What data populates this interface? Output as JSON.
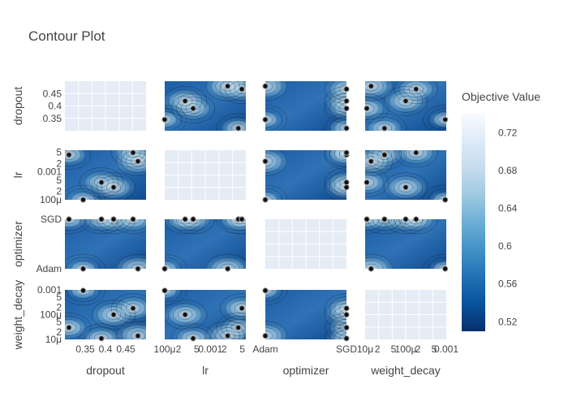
{
  "chart_data": {
    "type": "contour",
    "title": "Contour Plot",
    "params": [
      "dropout",
      "lr",
      "optimizer",
      "weight_decay"
    ],
    "colorbar": {
      "title": "Objective Value",
      "range": [
        0.51,
        0.74
      ],
      "ticks": [
        "0.52",
        "0.56",
        "0.6",
        "0.64",
        "0.68",
        "0.72"
      ],
      "colorscale": [
        "#08306b",
        "#08519c",
        "#2171b5",
        "#4292c6",
        "#6baed6",
        "#9ecae1",
        "#c6dbef",
        "#deebf7",
        "#f7fbff"
      ]
    },
    "axes": {
      "dropout": {
        "label": "dropout",
        "scale": "linear",
        "range": [
          0.3,
          0.5
        ],
        "ticks": [
          {
            "v": 0.35,
            "label": "0.35"
          },
          {
            "v": 0.4,
            "label": "0.4"
          },
          {
            "v": 0.45,
            "label": "0.45"
          }
        ]
      },
      "lr": {
        "label": "lr",
        "scale": "log",
        "range": [
          0.0001,
          0.006
        ],
        "ticks": [
          {
            "v": 0.0001,
            "label": "100μ"
          },
          {
            "v": 0.0002,
            "label": "2"
          },
          {
            "v": 0.0005,
            "label": "5"
          },
          {
            "v": 0.001,
            "label": "0.001"
          },
          {
            "v": 0.002,
            "label": "2"
          },
          {
            "v": 0.005,
            "label": "5"
          }
        ]
      },
      "optimizer": {
        "label": "optimizer",
        "scale": "category",
        "range": [
          0,
          1
        ],
        "ticks": [
          {
            "v": 0,
            "label": "Adam"
          },
          {
            "v": 1,
            "label": "SGD"
          }
        ]
      },
      "weight_decay": {
        "label": "weight_decay",
        "scale": "log",
        "range": [
          1e-05,
          0.001
        ],
        "ticks": [
          {
            "v": 1e-05,
            "label": "10μ"
          },
          {
            "v": 2e-05,
            "label": "2"
          },
          {
            "v": 5e-05,
            "label": "5"
          },
          {
            "v": 0.0001,
            "label": "100μ"
          },
          {
            "v": 0.0002,
            "label": "2"
          },
          {
            "v": 0.0005,
            "label": "5"
          },
          {
            "v": 0.001,
            "label": "0.001"
          }
        ]
      }
    },
    "trials": [
      {
        "dropout": 0.31,
        "lr": 0.0041,
        "optimizer": "SGD",
        "weight_decay": 3e-05,
        "objective": 0.55
      },
      {
        "dropout": 0.345,
        "lr": 0.0001,
        "optimizer": "Adam",
        "weight_decay": 0.00094,
        "objective": 0.52
      },
      {
        "dropout": 0.39,
        "lr": 0.00042,
        "optimizer": "SGD",
        "weight_decay": 1.1e-05,
        "objective": 0.56
      },
      {
        "dropout": 0.42,
        "lr": 0.00028,
        "optimizer": "SGD",
        "weight_decay": 0.0001,
        "objective": 0.58
      },
      {
        "dropout": 0.468,
        "lr": 0.0049,
        "optimizer": "SGD",
        "weight_decay": 0.00018,
        "objective": 0.57
      },
      {
        "dropout": 0.48,
        "lr": 0.0024,
        "optimizer": "Adam",
        "weight_decay": 1.4e-05,
        "objective": 0.6
      }
    ]
  }
}
